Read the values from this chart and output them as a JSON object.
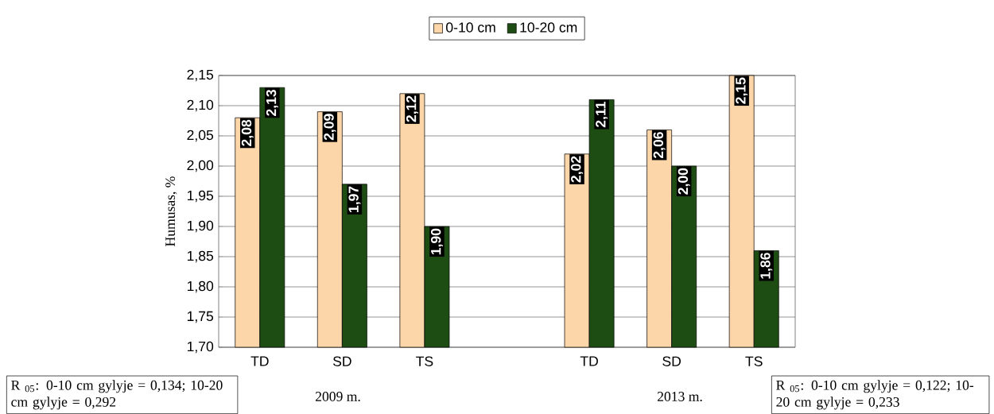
{
  "chart_data": {
    "type": "bar",
    "ylabel": "Humusas, %",
    "categories": [
      "TD",
      "SD",
      "TS",
      null,
      "TD",
      "SD",
      "TS"
    ],
    "series": [
      {
        "name": "0-10 cm",
        "color": "#fcd5a8",
        "values": [
          2.08,
          2.09,
          2.12,
          null,
          2.02,
          2.06,
          2.15
        ],
        "value_labels": [
          "2,08",
          "2,09",
          "2,12",
          null,
          "2,02",
          "2,06",
          "2,15"
        ]
      },
      {
        "name": "10-20 cm",
        "color": "#1e4d14",
        "values": [
          2.13,
          1.97,
          1.9,
          null,
          2.11,
          2.0,
          1.86
        ],
        "value_labels": [
          "2,13",
          "1,97",
          "1,90",
          null,
          "2,11",
          "2,00",
          "1,86"
        ]
      }
    ],
    "ylim": [
      1.7,
      2.15
    ],
    "yticks": [
      {
        "value": 1.7,
        "label": "1,70"
      },
      {
        "value": 1.75,
        "label": "1,75"
      },
      {
        "value": 1.8,
        "label": "1,80"
      },
      {
        "value": 1.85,
        "label": "1,85"
      },
      {
        "value": 1.9,
        "label": "1,90"
      },
      {
        "value": 1.95,
        "label": "1,95"
      },
      {
        "value": 2.0,
        "label": "2,00"
      },
      {
        "value": 2.05,
        "label": "2,05"
      },
      {
        "value": 2.1,
        "label": "2,10"
      },
      {
        "value": 2.15,
        "label": "2,15"
      }
    ],
    "grid": "y",
    "legend": "top",
    "annotations": [
      "R $_{05}$: 0-10 cm gylyje = 0,134; 10-20 cm gylyje = 0,292",
      "2009 m.",
      "2013 m.",
      "R $_{05}$: 0-10 cm gylyje = 0,122; 10-20 cm gylyje = 0,233"
    ]
  }
}
